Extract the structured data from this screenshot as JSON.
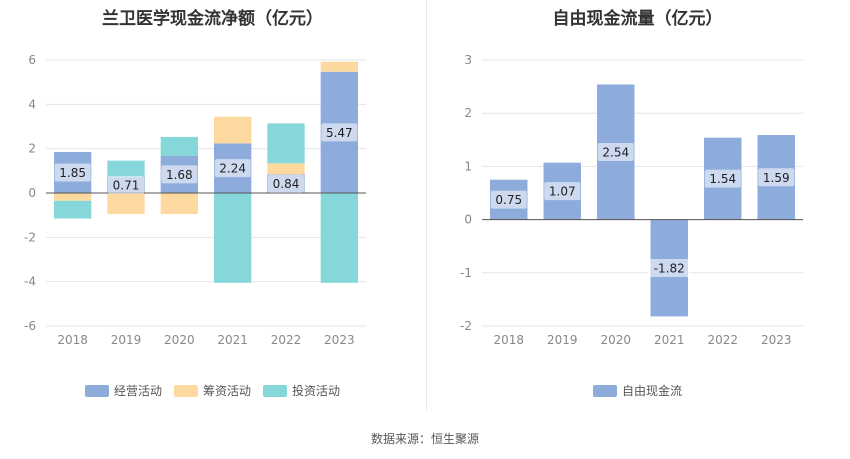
{
  "chart_data": [
    {
      "type": "bar",
      "stacked": true,
      "title": "兰卫医学现金流净额（亿元）",
      "categories": [
        "2018",
        "2019",
        "2020",
        "2021",
        "2022",
        "2023"
      ],
      "ylim": [
        -6,
        6
      ],
      "yticks": [
        -6,
        -4,
        -2,
        0,
        2,
        4,
        6
      ],
      "series": [
        {
          "name": "经营活动",
          "color": "#8eacdb",
          "values": [
            1.85,
            0.71,
            1.68,
            2.24,
            0.84,
            5.47
          ],
          "labels": [
            "1.85",
            "0.71",
            "1.68",
            "2.24",
            "0.84",
            "5.47"
          ]
        },
        {
          "name": "筹资活动",
          "color": "#fdd9a0",
          "values": [
            -0.35,
            -0.95,
            -0.95,
            1.2,
            0.5,
            0.45
          ]
        },
        {
          "name": "投资活动",
          "color": "#86d7d9",
          "values": [
            -0.8,
            0.75,
            0.85,
            -4.05,
            1.8,
            -4.05
          ]
        }
      ],
      "legend_position": "bottom"
    },
    {
      "type": "bar",
      "title": "自由现金流量（亿元）",
      "categories": [
        "2018",
        "2019",
        "2020",
        "2021",
        "2022",
        "2023"
      ],
      "ylim": [
        -2,
        3
      ],
      "yticks": [
        -2,
        -1,
        0,
        1,
        2,
        3
      ],
      "series": [
        {
          "name": "自由现金流",
          "color": "#8eacdb",
          "values": [
            0.75,
            1.07,
            2.54,
            -1.82,
            1.54,
            1.59
          ],
          "labels": [
            "0.75",
            "1.07",
            "2.54",
            "-1.82",
            "1.54",
            "1.59"
          ]
        }
      ],
      "legend_position": "bottom"
    }
  ],
  "footer": {
    "source": "数据来源：恒生聚源"
  }
}
